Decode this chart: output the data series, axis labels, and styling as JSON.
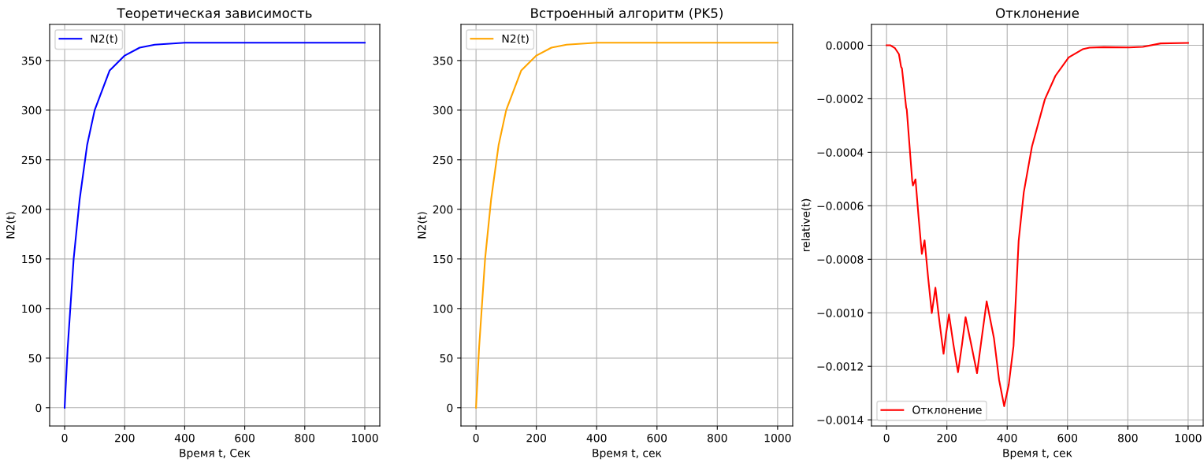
{
  "chart_data": [
    {
      "type": "line",
      "title": "Теоретическая зависимость",
      "xlabel": "Время t, Сек",
      "ylabel": "N2(t)",
      "xlim": [
        -50,
        1050
      ],
      "ylim": [
        -18.4,
        386.4
      ],
      "xticks": [
        0,
        200,
        400,
        600,
        800,
        1000
      ],
      "yticks": [
        0,
        50,
        100,
        150,
        200,
        250,
        300,
        350
      ],
      "grid": true,
      "legend": "top left",
      "series": [
        {
          "name": "N2(t)",
          "color": "#0000ff",
          "x": [
            0,
            10,
            20,
            30,
            50,
            75,
            100,
            150,
            200,
            250,
            300,
            400,
            600,
            800,
            1000
          ],
          "values": [
            0,
            60,
            105,
            150,
            210,
            265,
            300,
            340,
            355,
            363,
            366,
            368,
            368,
            368,
            368
          ]
        }
      ]
    },
    {
      "type": "line",
      "title": "Встроенный алгоритм (PK5)",
      "xlabel": "Время t, сек",
      "ylabel": "N2(t)",
      "xlim": [
        -50,
        1050
      ],
      "ylim": [
        -18.4,
        386.4
      ],
      "xticks": [
        0,
        200,
        400,
        600,
        800,
        1000
      ],
      "yticks": [
        0,
        50,
        100,
        150,
        200,
        250,
        300,
        350
      ],
      "grid": true,
      "legend": "top left",
      "series": [
        {
          "name": "N2(t)",
          "color": "#ffa500",
          "x": [
            0,
            10,
            20,
            30,
            50,
            75,
            100,
            150,
            200,
            250,
            300,
            400,
            600,
            800,
            1000
          ],
          "values": [
            0,
            60,
            105,
            150,
            210,
            265,
            300,
            340,
            355,
            363,
            366,
            368,
            368,
            368,
            368
          ]
        }
      ]
    },
    {
      "type": "line",
      "title": "Отклонение",
      "xlabel": "Время t, сек",
      "ylabel": "relative(t)",
      "xlim": [
        -50,
        1050
      ],
      "ylim": [
        -0.001423,
        7.8e-05
      ],
      "xticks": [
        0,
        200,
        400,
        600,
        800,
        1000
      ],
      "yticks": [
        {
          "value": 0,
          "label": "0.0000"
        },
        {
          "value": -0.0002,
          "label": "−0.0002"
        },
        {
          "value": -0.0004,
          "label": "−0.0004"
        },
        {
          "value": -0.0006,
          "label": "−0.0006"
        },
        {
          "value": -0.0008,
          "label": "−0.0008"
        },
        {
          "value": -0.001,
          "label": "−0.0010"
        },
        {
          "value": -0.0012,
          "label": "−0.0012"
        },
        {
          "value": -0.0014,
          "label": "−0.0014"
        }
      ],
      "grid": true,
      "legend": "bottom left",
      "series": [
        {
          "name": "Отклонение",
          "color": "#ff0000",
          "x": [
            0,
            13,
            28,
            41,
            48,
            51,
            65,
            67,
            85,
            87.5,
            96,
            106,
            117,
            126,
            138,
            150,
            162,
            175,
            189,
            197,
            207,
            222,
            237,
            250,
            262,
            281,
            300,
            316,
            332,
            356,
            373,
            390,
            405,
            421,
            438,
            455,
            482,
            525,
            560,
            604,
            650,
            673,
            720,
            804,
            850,
            909,
            1000
          ],
          "values": [
            0,
            0,
            -1.1e-05,
            -3.3e-05,
            -8e-05,
            -8.6e-05,
            -0.000233,
            -0.00024,
            -0.000506,
            -0.000524,
            -0.000501,
            -0.00064,
            -0.00078,
            -0.000729,
            -0.00087,
            -0.001001,
            -0.000906,
            -0.00103,
            -0.001153,
            -0.00108,
            -0.001006,
            -0.00112,
            -0.001222,
            -0.00112,
            -0.001016,
            -0.00112,
            -0.001226,
            -0.00109,
            -0.000957,
            -0.001094,
            -0.00125,
            -0.001349,
            -0.00127,
            -0.001124,
            -0.000731,
            -0.00055,
            -0.000379,
            -0.000202,
            -0.000114,
            -4.5e-05,
            -1.5e-05,
            -9e-06,
            -7e-06,
            -8e-06,
            -6e-06,
            7e-06,
            9e-06
          ]
        }
      ]
    }
  ]
}
